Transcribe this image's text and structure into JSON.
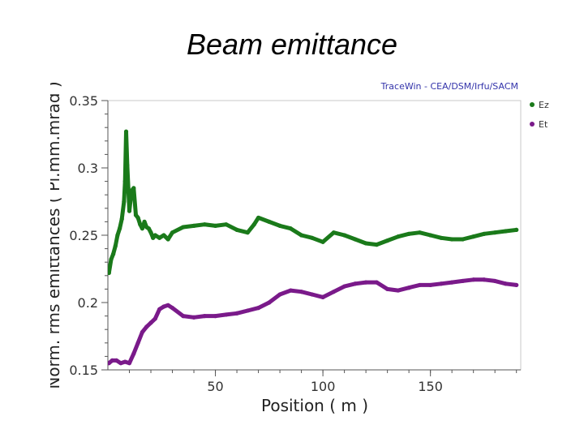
{
  "slide": {
    "title": "Beam emittance"
  },
  "chart_data": {
    "type": "line",
    "watermark": "TraceWin - CEA/DSM/Irfu/SACM",
    "xlabel": "Position ( m )",
    "ylabel": "Norm. rms emittances ( Pi.mm.mrad )",
    "xlim": [
      0,
      192
    ],
    "ylim": [
      0.15,
      0.35
    ],
    "x_ticks": [
      50,
      100,
      150
    ],
    "x_tick_labels": [
      "50",
      "100",
      "150"
    ],
    "y_ticks": [
      0.15,
      0.2,
      0.25,
      0.3,
      0.35
    ],
    "y_tick_labels": [
      "0.15",
      "0.2",
      "0.25",
      "0.3",
      "0.35"
    ],
    "grid": false,
    "legend_position": "right",
    "series": [
      {
        "name": "Ez",
        "color": "#1a7a1a",
        "x": [
          0.5,
          1.5,
          2.5,
          3.5,
          4.5,
          5.5,
          6.5,
          7.5,
          8.0,
          8.5,
          9.0,
          9.5,
          10.0,
          11.0,
          12.0,
          13.0,
          14.0,
          15.0,
          16.0,
          17.0,
          18.0,
          19.0,
          20.0,
          21.0,
          22.0,
          24.0,
          26.0,
          28.0,
          30.0,
          35.0,
          40.0,
          45.0,
          50.0,
          55.0,
          60.0,
          65.0,
          68.0,
          70.0,
          75.0,
          80.0,
          85.0,
          90.0,
          95.0,
          100.0,
          105.0,
          110.0,
          115.0,
          120.0,
          125.0,
          130.0,
          135.0,
          140.0,
          145.0,
          150.0,
          155.0,
          160.0,
          165.0,
          170.0,
          175.0,
          180.0,
          185.0,
          190.0
        ],
        "y": [
          0.222,
          0.232,
          0.236,
          0.242,
          0.25,
          0.255,
          0.262,
          0.275,
          0.29,
          0.327,
          0.302,
          0.285,
          0.268,
          0.283,
          0.285,
          0.265,
          0.263,
          0.258,
          0.255,
          0.26,
          0.256,
          0.255,
          0.252,
          0.248,
          0.25,
          0.248,
          0.25,
          0.247,
          0.252,
          0.256,
          0.257,
          0.258,
          0.257,
          0.258,
          0.254,
          0.252,
          0.258,
          0.263,
          0.26,
          0.257,
          0.255,
          0.25,
          0.248,
          0.245,
          0.252,
          0.25,
          0.247,
          0.244,
          0.243,
          0.246,
          0.249,
          0.251,
          0.252,
          0.25,
          0.248,
          0.247,
          0.247,
          0.249,
          0.251,
          0.252,
          0.253,
          0.254
        ]
      },
      {
        "name": "Et",
        "color": "#7a1a8a",
        "x": [
          0.5,
          2.0,
          4.0,
          6.0,
          8.0,
          10.0,
          12.0,
          14.0,
          16.0,
          18.0,
          20.0,
          22.0,
          24.0,
          26.0,
          28.0,
          30.0,
          35.0,
          40.0,
          45.0,
          50.0,
          55.0,
          60.0,
          65.0,
          70.0,
          75.0,
          80.0,
          85.0,
          90.0,
          95.0,
          100.0,
          105.0,
          110.0,
          115.0,
          120.0,
          125.0,
          130.0,
          135.0,
          140.0,
          145.0,
          150.0,
          155.0,
          160.0,
          165.0,
          170.0,
          175.0,
          180.0,
          185.0,
          190.0
        ],
        "y": [
          0.155,
          0.157,
          0.157,
          0.155,
          0.156,
          0.155,
          0.162,
          0.17,
          0.178,
          0.182,
          0.185,
          0.188,
          0.195,
          0.197,
          0.198,
          0.196,
          0.19,
          0.189,
          0.19,
          0.19,
          0.191,
          0.192,
          0.194,
          0.196,
          0.2,
          0.206,
          0.209,
          0.208,
          0.206,
          0.204,
          0.208,
          0.212,
          0.214,
          0.215,
          0.215,
          0.21,
          0.209,
          0.211,
          0.213,
          0.213,
          0.214,
          0.215,
          0.216,
          0.217,
          0.217,
          0.216,
          0.214,
          0.213
        ]
      }
    ]
  }
}
